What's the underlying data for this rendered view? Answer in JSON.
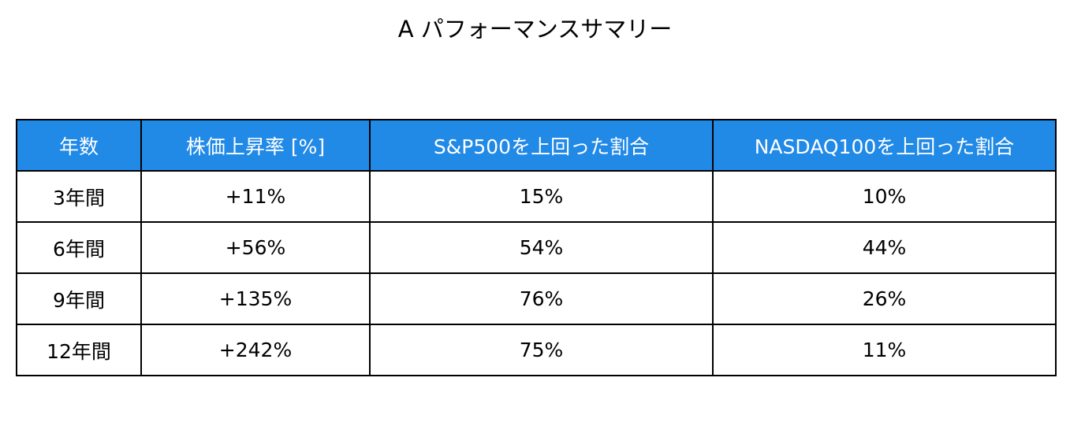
{
  "title": "A パフォーマンスサマリー",
  "table": {
    "header": [
      "年数",
      "株価上昇率 [%]",
      "S&P500を上回った割合",
      "NASDAQ100を上回った割合"
    ],
    "rows": [
      [
        "3年間",
        "+11%",
        "15%",
        "10%"
      ],
      [
        "6年間",
        "+56%",
        "54%",
        "44%"
      ],
      [
        "9年間",
        "+135%",
        "76%",
        "26%"
      ],
      [
        "12年間",
        "+242%",
        "75%",
        "11%"
      ]
    ]
  }
}
